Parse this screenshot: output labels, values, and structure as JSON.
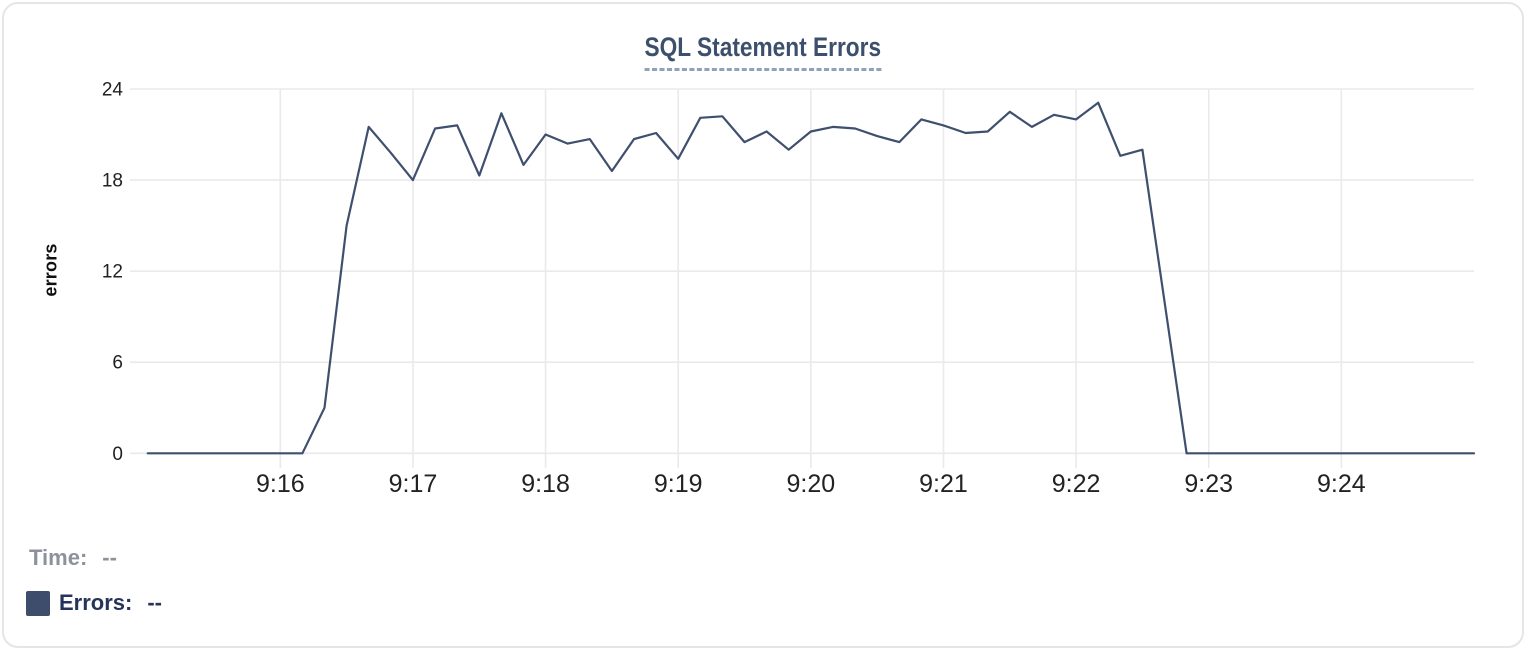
{
  "readout": {
    "time_label": "Time:",
    "time_value": "--",
    "errors_label": "Errors:",
    "errors_value": "--"
  },
  "colors": {
    "line": "#3f4f6e",
    "title": "#3c506d",
    "legend_swatch": "#3e4d6b",
    "grid": "#eaeaec",
    "tick_text": "#222222",
    "muted_text": "#8c919b",
    "navy_text": "#26345a",
    "card_border": "#e5e5e8"
  },
  "chart_data": {
    "type": "line",
    "title": "SQL Statement Errors",
    "xlabel": "",
    "ylabel": "errors",
    "ylim": [
      0,
      24
    ],
    "y_ticks": [
      0,
      6,
      12,
      18,
      24
    ],
    "x_ticks": [
      "9:16",
      "9:17",
      "9:18",
      "9:19",
      "9:20",
      "9:21",
      "9:22",
      "9:23",
      "9:24"
    ],
    "x_range": [
      "9:14:52",
      "9:25:00"
    ],
    "grid": true,
    "legend_position": "bottom-left",
    "series": [
      {
        "name": "Errors",
        "color": "#3f4f6e",
        "points": [
          [
            "9:15:00",
            0
          ],
          [
            "9:15:10",
            0
          ],
          [
            "9:15:20",
            0
          ],
          [
            "9:15:30",
            0
          ],
          [
            "9:15:40",
            0
          ],
          [
            "9:15:50",
            0
          ],
          [
            "9:16:00",
            0
          ],
          [
            "9:16:10",
            0
          ],
          [
            "9:16:20",
            3
          ],
          [
            "9:16:30",
            15
          ],
          [
            "9:16:40",
            21.5
          ],
          [
            "9:16:50",
            19.8
          ],
          [
            "9:17:00",
            18
          ],
          [
            "9:17:10",
            21.4
          ],
          [
            "9:17:20",
            21.6
          ],
          [
            "9:17:30",
            18.3
          ],
          [
            "9:17:40",
            22.4
          ],
          [
            "9:17:50",
            19
          ],
          [
            "9:18:00",
            21
          ],
          [
            "9:18:10",
            20.4
          ],
          [
            "9:18:20",
            20.7
          ],
          [
            "9:18:30",
            18.6
          ],
          [
            "9:18:40",
            20.7
          ],
          [
            "9:18:50",
            21.1
          ],
          [
            "9:19:00",
            19.4
          ],
          [
            "9:19:10",
            22.1
          ],
          [
            "9:19:20",
            22.2
          ],
          [
            "9:19:30",
            20.5
          ],
          [
            "9:19:40",
            21.2
          ],
          [
            "9:19:50",
            20
          ],
          [
            "9:20:00",
            21.2
          ],
          [
            "9:20:10",
            21.5
          ],
          [
            "9:20:20",
            21.4
          ],
          [
            "9:20:30",
            20.9
          ],
          [
            "9:20:40",
            20.5
          ],
          [
            "9:20:50",
            22
          ],
          [
            "9:21:00",
            21.6
          ],
          [
            "9:21:10",
            21.1
          ],
          [
            "9:21:20",
            21.2
          ],
          [
            "9:21:30",
            22.5
          ],
          [
            "9:21:40",
            21.5
          ],
          [
            "9:21:50",
            22.3
          ],
          [
            "9:22:00",
            22
          ],
          [
            "9:22:10",
            23.1
          ],
          [
            "9:22:20",
            19.6
          ],
          [
            "9:22:30",
            20
          ],
          [
            "9:22:40",
            10
          ],
          [
            "9:22:50",
            0
          ],
          [
            "9:23:00",
            0
          ],
          [
            "9:23:10",
            0
          ],
          [
            "9:23:20",
            0
          ],
          [
            "9:23:30",
            0
          ],
          [
            "9:23:40",
            0
          ],
          [
            "9:23:50",
            0
          ],
          [
            "9:24:00",
            0
          ],
          [
            "9:24:10",
            0
          ],
          [
            "9:24:20",
            0
          ],
          [
            "9:24:30",
            0
          ],
          [
            "9:24:40",
            0
          ],
          [
            "9:24:50",
            0
          ],
          [
            "9:25:00",
            0
          ]
        ]
      }
    ]
  }
}
